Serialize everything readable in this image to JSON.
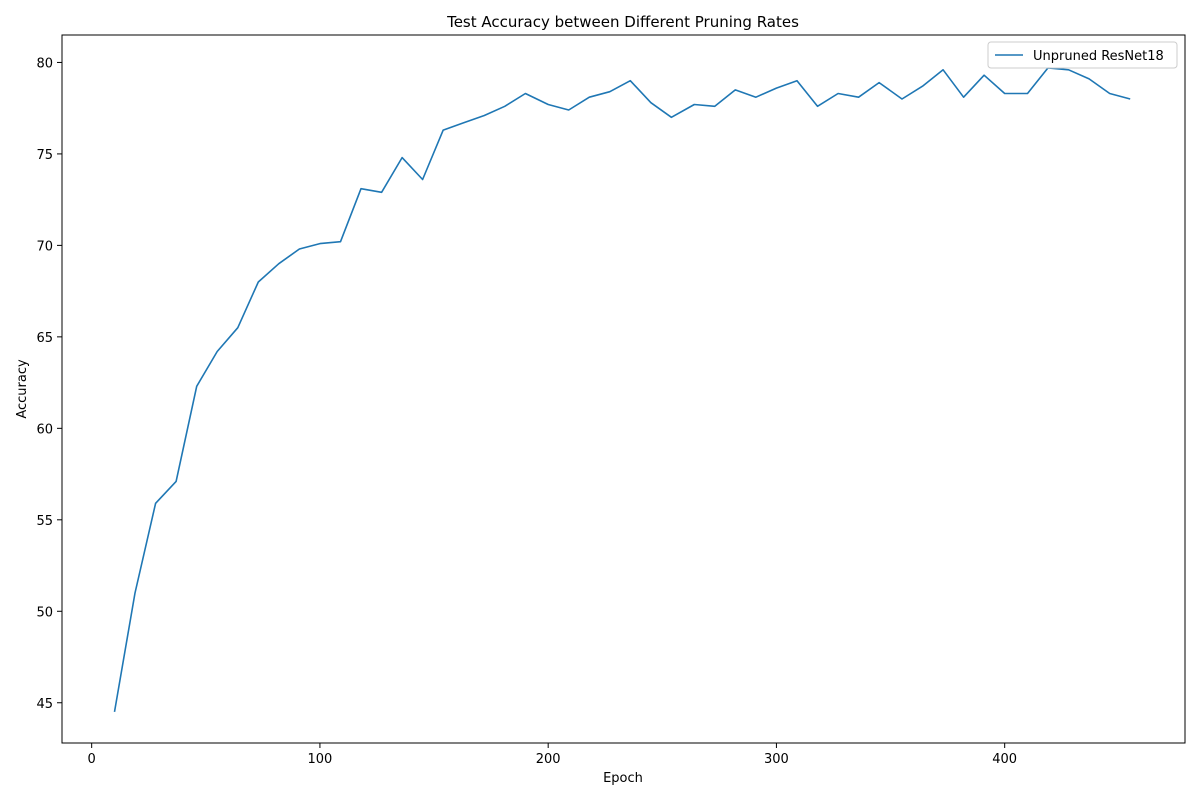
{
  "chart_data": {
    "type": "line",
    "title": "Test Accuracy between Different Pruning Rates",
    "xlabel": "Epoch",
    "ylabel": "Accuracy",
    "xlim": [
      -13,
      479
    ],
    "ylim": [
      42.8,
      81.5
    ],
    "xticks": [
      0,
      100,
      200,
      300,
      400
    ],
    "yticks": [
      45,
      50,
      55,
      60,
      65,
      70,
      75,
      80
    ],
    "grid": false,
    "legend_position": "top-right",
    "series": [
      {
        "name": "Unpruned ResNet18",
        "color": "#1f77b4",
        "x": [
          10,
          19,
          28,
          37,
          46,
          55,
          64,
          73,
          82,
          91,
          100,
          109,
          118,
          127,
          136,
          145,
          154,
          163,
          172,
          181,
          190,
          200,
          209,
          218,
          227,
          236,
          245,
          254,
          264,
          273,
          282,
          291,
          300,
          309,
          318,
          327,
          336,
          345,
          355,
          364,
          373,
          382,
          391,
          400,
          410,
          419,
          428,
          437,
          446,
          455
        ],
        "y": [
          44.5,
          51.0,
          55.9,
          57.1,
          62.3,
          64.2,
          65.5,
          68.0,
          69.0,
          69.8,
          70.1,
          70.2,
          73.1,
          72.9,
          74.8,
          73.6,
          76.3,
          76.7,
          77.1,
          77.6,
          78.3,
          77.7,
          77.4,
          78.1,
          78.4,
          79.0,
          77.8,
          77.0,
          77.7,
          77.6,
          78.5,
          78.1,
          78.6,
          79.0,
          77.6,
          78.3,
          78.1,
          78.9,
          78.0,
          78.7,
          79.6,
          78.1,
          79.3,
          78.3,
          78.3,
          79.7,
          79.6,
          79.1,
          78.3,
          78.0
        ]
      }
    ]
  }
}
